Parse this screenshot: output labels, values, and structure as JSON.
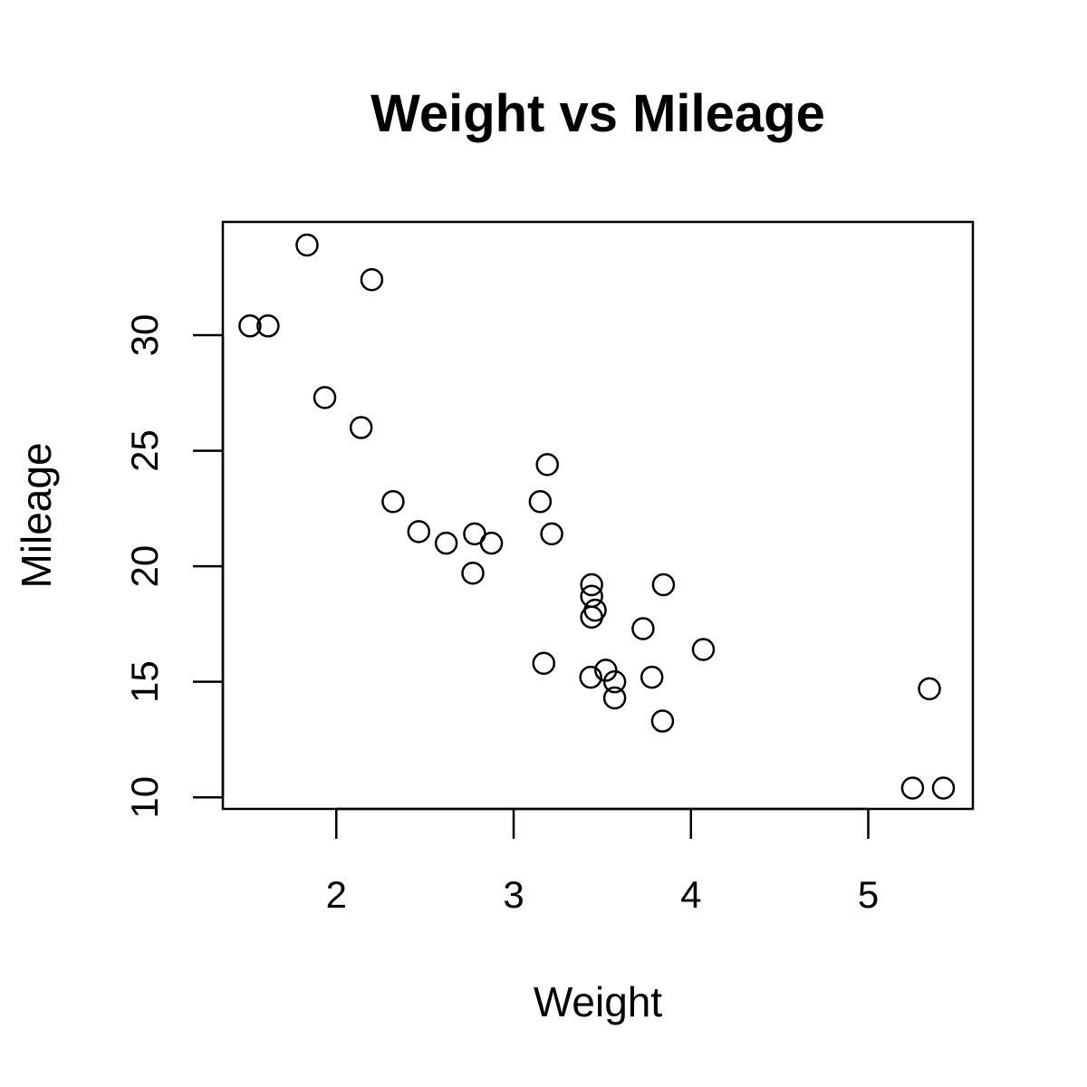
{
  "chart_data": {
    "type": "scatter",
    "title": "Weight vs Mileage",
    "xlabel": "Weight",
    "ylabel": "Mileage",
    "xlim": [
      1.36,
      5.59
    ],
    "ylim": [
      9.5,
      34.9
    ],
    "xticks": [
      2,
      3,
      4,
      5
    ],
    "yticks": [
      10,
      15,
      20,
      25,
      30
    ],
    "grid": false,
    "legend": "none",
    "point_style": "open-circle",
    "point_color": "#000000",
    "points": [
      {
        "x": 2.62,
        "y": 21.0
      },
      {
        "x": 2.875,
        "y": 21.0
      },
      {
        "x": 2.32,
        "y": 22.8
      },
      {
        "x": 3.215,
        "y": 21.4
      },
      {
        "x": 3.44,
        "y": 18.7
      },
      {
        "x": 3.46,
        "y": 18.1
      },
      {
        "x": 3.57,
        "y": 14.3
      },
      {
        "x": 3.19,
        "y": 24.4
      },
      {
        "x": 3.15,
        "y": 22.8
      },
      {
        "x": 3.44,
        "y": 19.2
      },
      {
        "x": 3.44,
        "y": 17.8
      },
      {
        "x": 4.07,
        "y": 16.4
      },
      {
        "x": 3.73,
        "y": 17.3
      },
      {
        "x": 3.78,
        "y": 15.2
      },
      {
        "x": 5.25,
        "y": 10.4
      },
      {
        "x": 5.424,
        "y": 10.4
      },
      {
        "x": 5.345,
        "y": 14.7
      },
      {
        "x": 2.2,
        "y": 32.4
      },
      {
        "x": 1.615,
        "y": 30.4
      },
      {
        "x": 1.835,
        "y": 33.9
      },
      {
        "x": 2.465,
        "y": 21.5
      },
      {
        "x": 3.52,
        "y": 15.5
      },
      {
        "x": 3.435,
        "y": 15.2
      },
      {
        "x": 3.84,
        "y": 13.3
      },
      {
        "x": 3.845,
        "y": 19.2
      },
      {
        "x": 1.935,
        "y": 27.3
      },
      {
        "x": 2.14,
        "y": 26.0
      },
      {
        "x": 1.513,
        "y": 30.4
      },
      {
        "x": 3.17,
        "y": 15.8
      },
      {
        "x": 2.77,
        "y": 19.7
      },
      {
        "x": 3.57,
        "y": 15.0
      },
      {
        "x": 2.78,
        "y": 21.4
      }
    ]
  }
}
